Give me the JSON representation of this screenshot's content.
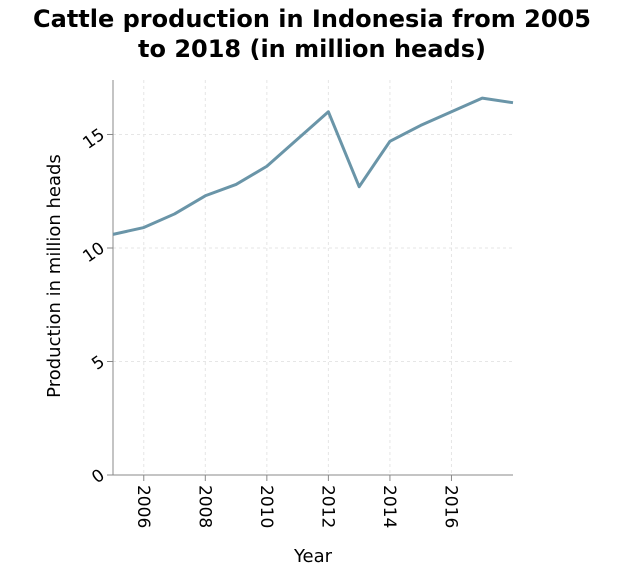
{
  "chart_data": {
    "type": "line",
    "title_lines": [
      "Cattle production in Indonesia from 2005",
      "to 2018 (in million heads)"
    ],
    "xlabel": "Year",
    "ylabel": "Production in million heads",
    "x": [
      2005,
      2006,
      2007,
      2008,
      2009,
      2010,
      2011,
      2012,
      2013,
      2014,
      2015,
      2016,
      2017,
      2018
    ],
    "series": [
      {
        "values": [
          10.6,
          10.9,
          11.5,
          12.3,
          12.8,
          13.6,
          14.8,
          16.0,
          12.7,
          14.7,
          15.4,
          16.0,
          16.6,
          16.4
        ]
      }
    ],
    "xlim": [
      2005,
      2018
    ],
    "ylim": [
      0,
      17.4
    ],
    "xticks": [
      2006,
      2008,
      2010,
      2012,
      2014,
      2016
    ],
    "xtick_labels": [
      "2006",
      "2008",
      "2010",
      "2012",
      "2014",
      "2016"
    ],
    "yticks": [
      0,
      5,
      10,
      15
    ],
    "ytick_labels": [
      "0",
      "5",
      "10",
      "15"
    ],
    "grid": true,
    "line_color": "#6a95a8",
    "grid_color": "#e6e6e6"
  }
}
